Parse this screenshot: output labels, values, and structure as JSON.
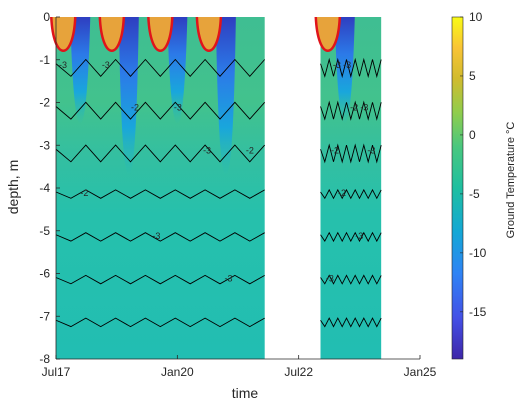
{
  "chart_data": {
    "type": "heatmap",
    "xlabel": "time",
    "ylabel": "depth, m",
    "x_ticks": [
      "Jul17",
      "Jan20",
      "Jul22",
      "Jan25"
    ],
    "x_tick_years": [
      2017.5,
      2020.0,
      2022.5,
      2025.0
    ],
    "xlim": [
      2017.5,
      2025.0
    ],
    "ylim": [
      -8,
      0
    ],
    "y_ticks": [
      0,
      -1,
      -2,
      -3,
      -4,
      -5,
      -6,
      -7,
      -8
    ],
    "y_tick_labels": [
      "0",
      "-1",
      "-2",
      "-3",
      "-4",
      "-5",
      "-6",
      "-7",
      "-8"
    ],
    "data_gaps": [
      [
        2021.8,
        2022.95
      ]
    ],
    "data_segments": [
      [
        2017.5,
        2021.8
      ],
      [
        2022.95,
        2024.2
      ]
    ],
    "colorbar": {
      "label": "Ground Temperature °C",
      "range": [
        -19,
        10
      ],
      "ticks": [
        10,
        5,
        0,
        -5,
        -10,
        -15
      ],
      "tick_labels": [
        "10",
        "5",
        "0",
        "-5",
        "-10",
        "-15"
      ],
      "colormap": "parula"
    },
    "zero_isotherm_color": "#e0141b",
    "contour_color": "#000000",
    "contour_labels": [
      "-3",
      "-2",
      "-3",
      "-2",
      "-3",
      "-3",
      "-3",
      "-3",
      "-2"
    ]
  }
}
